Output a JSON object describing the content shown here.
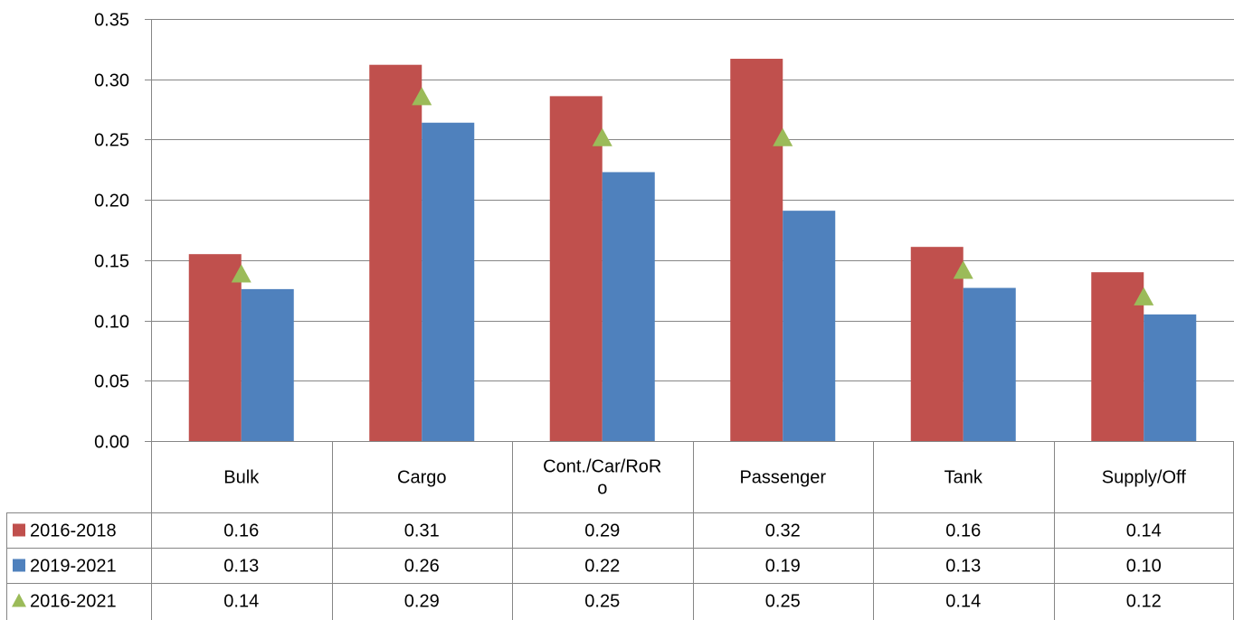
{
  "chart_data": {
    "type": "bar",
    "categories": [
      "Bulk",
      "Cargo",
      "Cont./Car/RoRo",
      "Passenger",
      "Tank",
      "Supply/Off"
    ],
    "category_labels_display": [
      [
        "Bulk"
      ],
      [
        "Cargo"
      ],
      [
        "Cont./Car/RoR",
        "o"
      ],
      [
        "Passenger"
      ],
      [
        "Tank"
      ],
      [
        "Supply/Off"
      ]
    ],
    "series": [
      {
        "name": "2016-2018",
        "kind": "bar",
        "color": "#C0504D",
        "marker": "square",
        "values": [
          0.155,
          0.312,
          0.286,
          0.317,
          0.161,
          0.14
        ],
        "table_values": [
          "0.16",
          "0.31",
          "0.29",
          "0.32",
          "0.16",
          "0.14"
        ]
      },
      {
        "name": "2019-2021",
        "kind": "bar",
        "color": "#4F81BD",
        "marker": "square",
        "values": [
          0.126,
          0.264,
          0.223,
          0.191,
          0.127,
          0.105
        ],
        "table_values": [
          "0.13",
          "0.26",
          "0.22",
          "0.19",
          "0.13",
          "0.10"
        ]
      },
      {
        "name": "2016-2021",
        "kind": "marker",
        "color": "#9BBB59",
        "marker": "triangle",
        "values": [
          0.139,
          0.286,
          0.252,
          0.252,
          0.142,
          0.12
        ],
        "table_values": [
          "0.14",
          "0.29",
          "0.25",
          "0.25",
          "0.14",
          "0.12"
        ]
      }
    ],
    "y_ticks": [
      "0.00",
      "0.05",
      "0.10",
      "0.15",
      "0.20",
      "0.25",
      "0.30",
      "0.35"
    ],
    "ylim": [
      0,
      0.35
    ],
    "grid": true,
    "legend": "data-table"
  }
}
